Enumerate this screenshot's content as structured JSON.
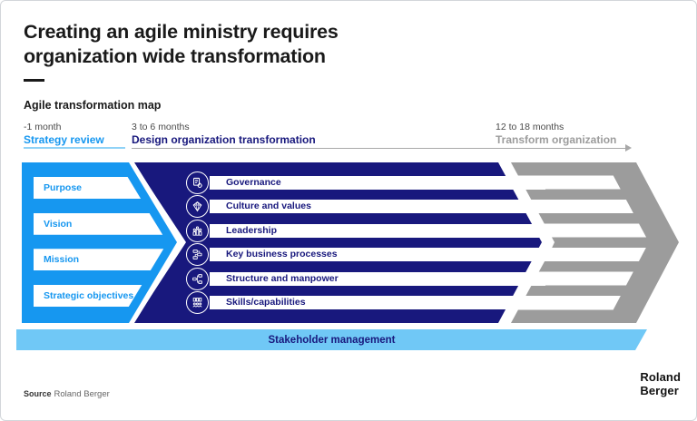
{
  "page": {
    "title_line1": "Creating an agile ministry requires",
    "title_line2": "organization wide transformation",
    "subtitle": "Agile transformation map"
  },
  "phases": [
    {
      "duration": "-1 month",
      "name": "Strategy review"
    },
    {
      "duration": "3 to 6 months",
      "name": "Design organization transformation"
    },
    {
      "duration": "12 to 18 months",
      "name": "Transform organization"
    }
  ],
  "strategy_items": [
    "Purpose",
    "Vision",
    "Mission",
    "Strategic objectives"
  ],
  "design_rows": [
    {
      "label": "Governance",
      "icon": "document-gear-icon"
    },
    {
      "label": "Culture and values",
      "icon": "diamond-icon"
    },
    {
      "label": "Leadership",
      "icon": "leadership-people-icon"
    },
    {
      "label": "Key business processes",
      "icon": "process-flow-icon"
    },
    {
      "label": "Structure and manpower",
      "icon": "org-structure-icon"
    },
    {
      "label": "Skills/capabilities",
      "icon": "skills-people-icon"
    }
  ],
  "stakeholder_bar": {
    "label": "Stakeholder management"
  },
  "footer": {
    "source_label": "Source",
    "source_text": "Roland Berger",
    "logo_line1": "Roland",
    "logo_line2": "Berger"
  },
  "colors": {
    "accent_blue": "#1697f0",
    "navy": "#18187d",
    "gray": "#9c9c9c",
    "light_blue": "#70c8f6"
  }
}
